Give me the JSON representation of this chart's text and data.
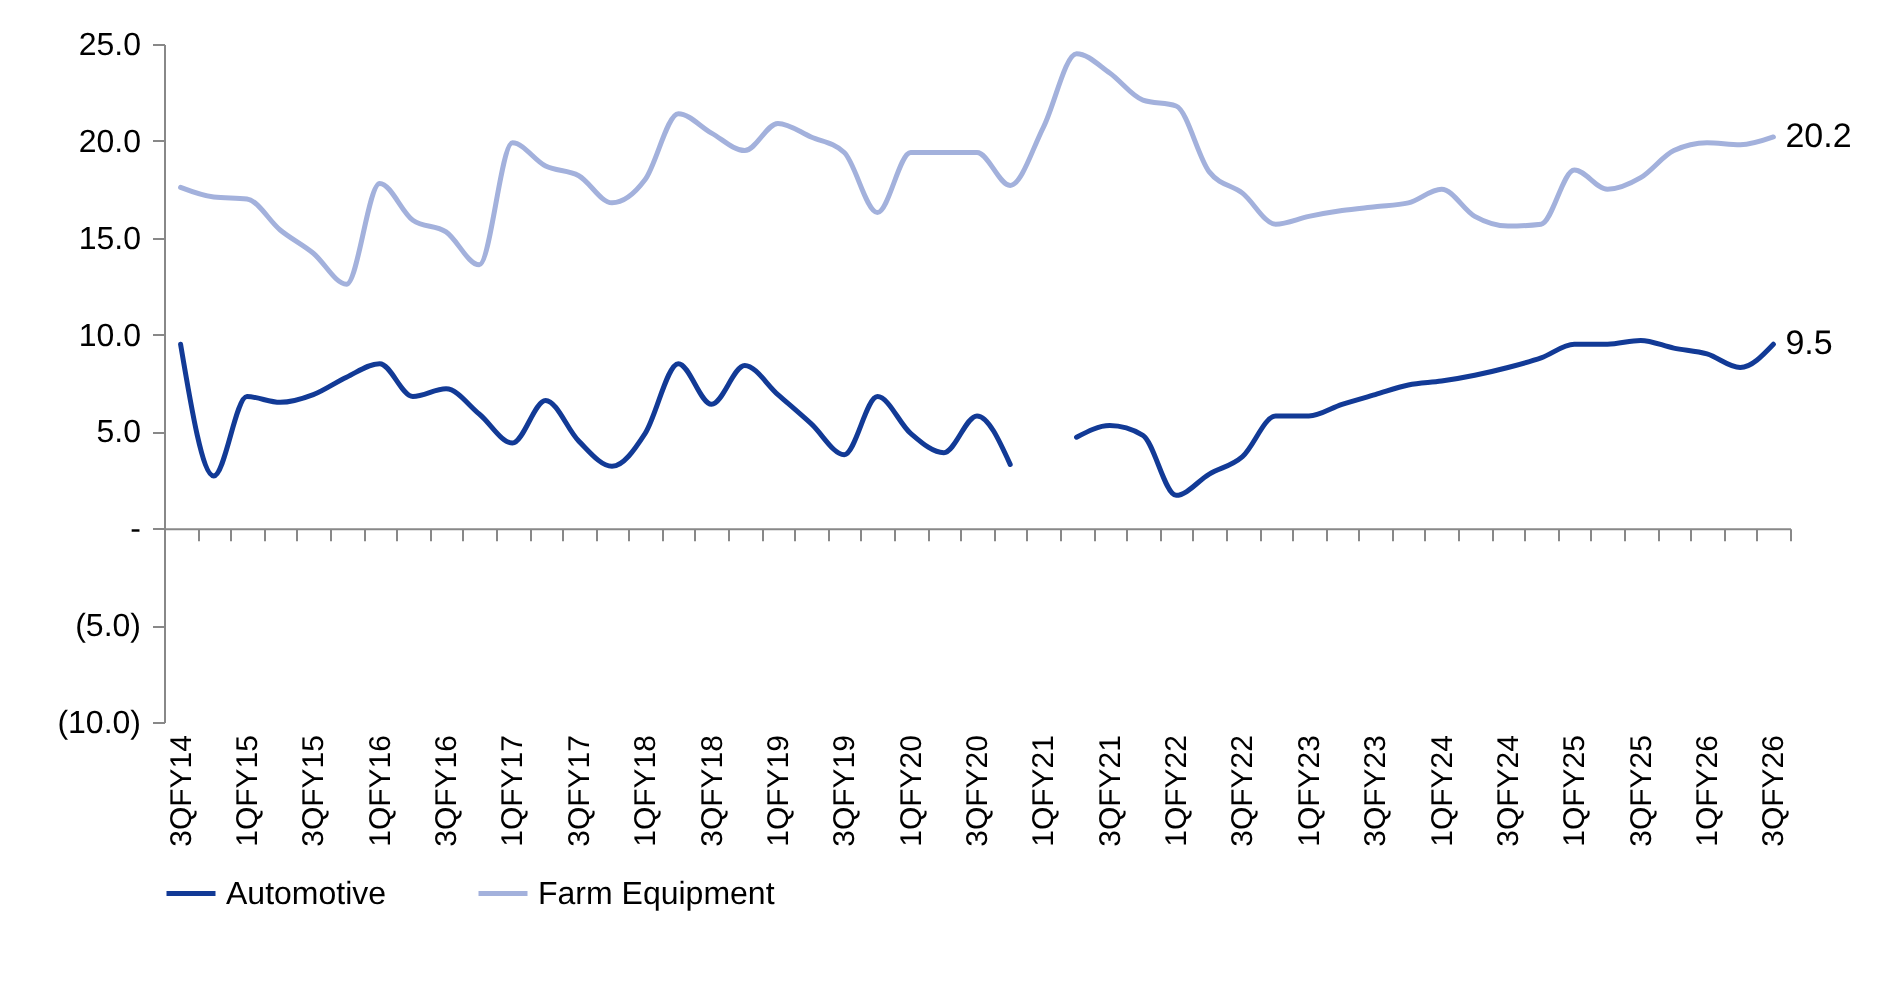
{
  "chart_data": {
    "type": "line",
    "categories": [
      "3QFY14",
      null,
      "1QFY15",
      null,
      "3QFY15",
      null,
      "1QFY16",
      null,
      "3QFY16",
      null,
      "1QFY17",
      null,
      "3QFY17",
      null,
      "1QFY18",
      null,
      "3QFY18",
      null,
      "1QFY19",
      null,
      "3QFY19",
      null,
      "1QFY20",
      null,
      "3QFY20",
      null,
      "1QFY21",
      null,
      "3QFY21",
      null,
      "1QFY22",
      null,
      "3QFY22",
      null,
      "1QFY23",
      null,
      "3QFY23",
      null,
      "1QFY24",
      null,
      "3QFY24",
      null,
      "1QFY25",
      null,
      "3QFY25",
      null,
      "1QFY26",
      null,
      "3QFY26"
    ],
    "series": [
      {
        "name": "Automotive",
        "color": "#123a96",
        "values": [
          9.5,
          2.7,
          6.8,
          6.5,
          6.9,
          7.8,
          8.5,
          6.8,
          7.2,
          5.9,
          4.4,
          6.6,
          4.5,
          3.2,
          4.9,
          8.5,
          6.4,
          8.4,
          6.9,
          5.4,
          3.8,
          6.8,
          4.9,
          3.9,
          5.8,
          3.3,
          null,
          4.7,
          5.3,
          4.8,
          1.7,
          2.8,
          3.7,
          5.8,
          5.8,
          6.4,
          6.9,
          7.4,
          7.6,
          7.9,
          8.3,
          8.8,
          9.5,
          9.5,
          9.7,
          9.3,
          9.0,
          8.3,
          9.5
        ],
        "value_labels": [
          null,
          null,
          null,
          null,
          null,
          null,
          null,
          null,
          null,
          null,
          null,
          null,
          null,
          null,
          null,
          null,
          null,
          null,
          null,
          null,
          null,
          null,
          null,
          null,
          null,
          null,
          null,
          null,
          null,
          null,
          null,
          null,
          null,
          null,
          null,
          null,
          null,
          null,
          null,
          null,
          null,
          null,
          null,
          null,
          null,
          null,
          null,
          null,
          "9.5"
        ]
      },
      {
        "name": "Farm Equipment",
        "color": "#a3b1dc",
        "values": [
          17.6,
          17.1,
          17.0,
          15.4,
          14.2,
          12.6,
          17.8,
          15.9,
          15.3,
          13.6,
          19.9,
          18.7,
          18.2,
          16.8,
          18.0,
          21.4,
          20.4,
          19.5,
          20.9,
          20.2,
          19.4,
          16.3,
          19.4,
          19.4,
          19.4,
          17.7,
          20.7,
          24.5,
          23.5,
          22.1,
          21.8,
          18.4,
          17.3,
          15.7,
          16.1,
          16.4,
          16.6,
          16.8,
          17.5,
          16.1,
          15.6,
          15.7,
          18.5,
          17.5,
          18.1,
          19.5,
          19.9,
          19.8,
          20.2
        ],
        "value_labels": [
          null,
          null,
          null,
          null,
          null,
          null,
          null,
          null,
          null,
          null,
          null,
          null,
          null,
          null,
          null,
          null,
          null,
          null,
          null,
          null,
          null,
          null,
          null,
          null,
          null,
          null,
          null,
          null,
          null,
          null,
          null,
          null,
          null,
          null,
          null,
          null,
          null,
          null,
          null,
          null,
          null,
          null,
          null,
          null,
          null,
          null,
          null,
          null,
          "20.2"
        ]
      }
    ],
    "ylim": [
      -10,
      25
    ],
    "yticks": [
      {
        "value": -10,
        "label": "(10.0)"
      },
      {
        "value": -5,
        "label": "(5.0)"
      },
      {
        "value": 0,
        "label": "-"
      },
      {
        "value": 5,
        "label": "5.0"
      },
      {
        "value": 10,
        "label": "10.0"
      },
      {
        "value": 15,
        "label": "15.0"
      },
      {
        "value": 20,
        "label": "20.0"
      },
      {
        "value": 25,
        "label": "25.0"
      }
    ],
    "legend": "bottom",
    "line_style": "solid",
    "marker": "none"
  }
}
